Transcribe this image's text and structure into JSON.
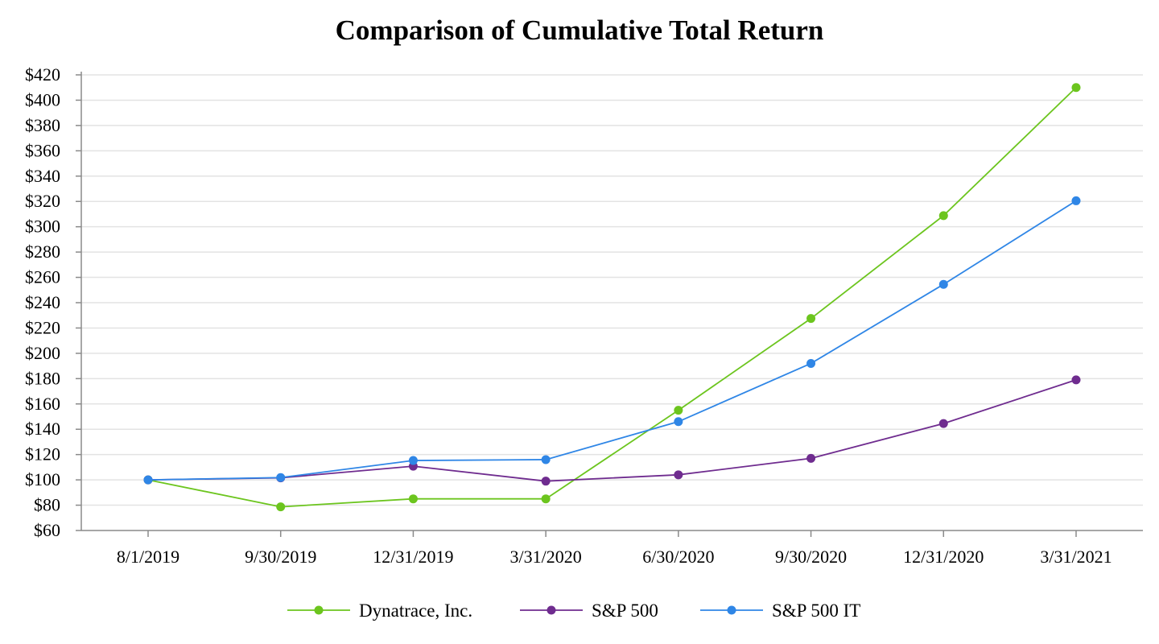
{
  "chart_data": {
    "type": "line",
    "title": "Comparison of Cumulative Total Return",
    "xlabel": "",
    "ylabel": "",
    "categories": [
      "8/1/2019",
      "9/30/2019",
      "12/31/2019",
      "3/31/2020",
      "6/30/2020",
      "9/30/2020",
      "12/31/2020",
      "3/31/2021"
    ],
    "y_ticks": [
      60,
      80,
      100,
      120,
      140,
      160,
      180,
      200,
      220,
      240,
      260,
      280,
      300,
      320,
      340,
      360,
      380,
      400,
      420
    ],
    "y_tick_labels": [
      "$60",
      "$80",
      "$100",
      "$120",
      "$140",
      "$160",
      "$180",
      "$200",
      "$220",
      "$240",
      "$260",
      "$280",
      "$300",
      "$320",
      "$340",
      "$360",
      "$380",
      "$400",
      "$420"
    ],
    "ylim": [
      60,
      420
    ],
    "grid": true,
    "legend_position": "bottom",
    "series": [
      {
        "name": "Dynatrace, Inc.",
        "color": "#6cc51e",
        "values": [
          100.0,
          78.7,
          85.0,
          85.0,
          155.0,
          227.5,
          308.8,
          410.0
        ]
      },
      {
        "name": "S&P 500",
        "color": "#6f2c8f",
        "values": [
          100.0,
          101.6,
          110.8,
          99.0,
          104.0,
          117.0,
          144.5,
          179.0
        ]
      },
      {
        "name": "S&P 500 IT",
        "color": "#2f86e6",
        "values": [
          100.0,
          101.8,
          115.3,
          116.0,
          146.0,
          192.0,
          254.5,
          320.5
        ]
      }
    ]
  }
}
